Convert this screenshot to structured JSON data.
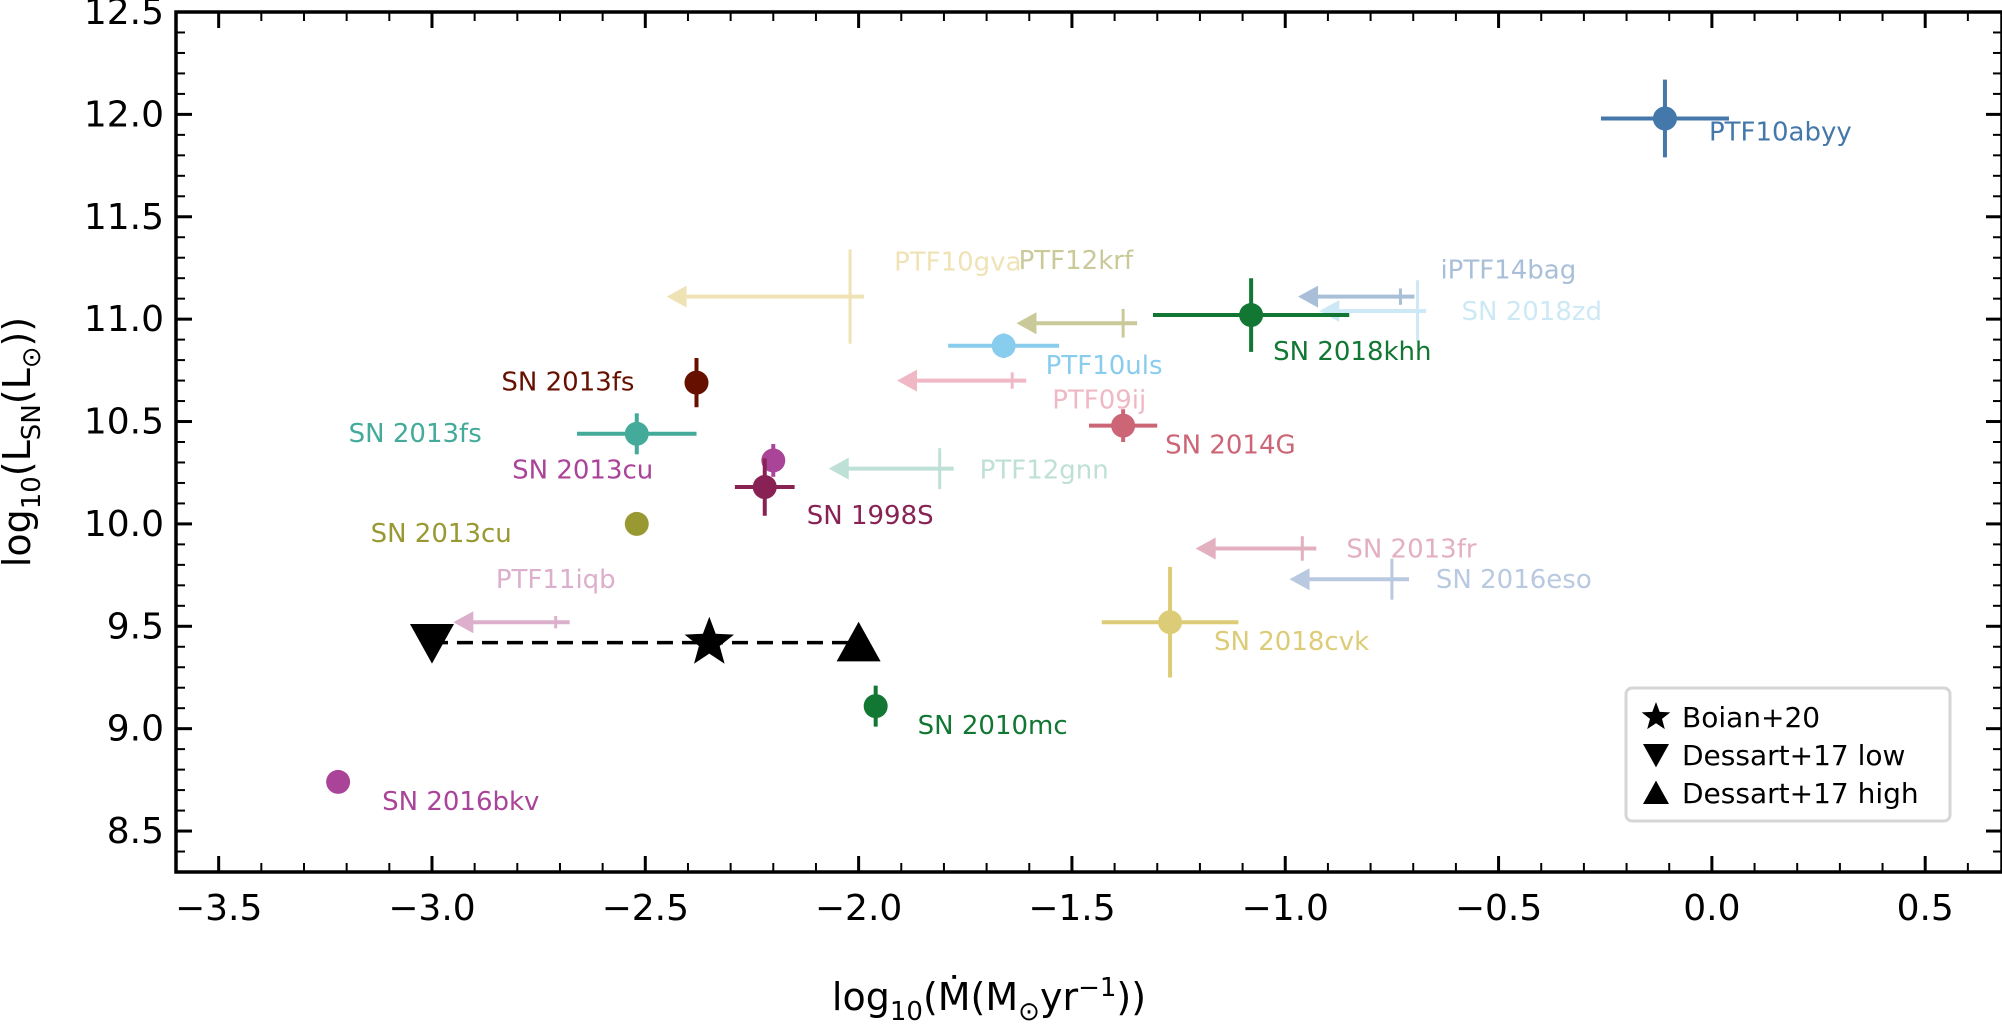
{
  "chart_data": {
    "type": "scatter",
    "title": "",
    "xlabel_parts": {
      "prefix": "log",
      "sub": "10",
      "body": "(Ṁ(M",
      "sun": "⊙",
      "mid": "yr",
      "sup": "−1",
      "end": "))"
    },
    "ylabel_parts": {
      "prefix": "log",
      "sub": "10",
      "body": "(L",
      "sub2": "SN",
      "mid": "(L",
      "sun": "⊙",
      "end": "))"
    },
    "xlim": [
      -3.6,
      0.68
    ],
    "ylim": [
      8.3,
      12.5
    ],
    "xticks": [
      -3.5,
      -3.0,
      -2.5,
      -2.0,
      -1.5,
      -1.0,
      -0.5,
      0.0,
      0.5
    ],
    "xtick_labels": [
      "−3.5",
      "−3.0",
      "−2.5",
      "−2.0",
      "−1.5",
      "−1.0",
      "−0.5",
      "0.0",
      "0.5"
    ],
    "yticks": [
      8.5,
      9.0,
      9.5,
      10.0,
      10.5,
      11.0,
      11.5,
      12.0,
      12.5
    ],
    "ytick_labels": [
      "8.5",
      "9.0",
      "9.5",
      "10.0",
      "10.5",
      "11.0",
      "11.5",
      "12.0",
      "12.5"
    ],
    "detections": [
      {
        "name": "PTF10abyy",
        "x": -0.11,
        "y": 11.98,
        "xerr": 0.15,
        "yerr": 0.19,
        "color": "#4477aa"
      },
      {
        "name": "SN 2018khh",
        "x": -1.08,
        "y": 11.02,
        "xerr": 0.23,
        "yerr": 0.18,
        "color": "#117733"
      },
      {
        "name": "PTF10uls",
        "x": -1.66,
        "y": 10.87,
        "xerr": 0.13,
        "yerr": 0.06,
        "color": "#88ccee"
      },
      {
        "name": "SN 2013fs",
        "x": -2.38,
        "y": 10.69,
        "xerr": 0.0,
        "yerr": 0.12,
        "color": "#661100"
      },
      {
        "name": "SN 2013fs",
        "x": -2.52,
        "y": 10.44,
        "xerr": 0.14,
        "yerr": 0.1,
        "color": "#44aa99"
      },
      {
        "name": "SN 2014G",
        "x": -1.38,
        "y": 10.48,
        "xerr": 0.08,
        "yerr": 0.08,
        "color": "#cc6677"
      },
      {
        "name": "SN 2013cu",
        "x": -2.2,
        "y": 10.31,
        "xerr": 0.0,
        "yerr": 0.08,
        "color": "#aa4499"
      },
      {
        "name": "SN 1998S",
        "x": -2.22,
        "y": 10.18,
        "xerr": 0.07,
        "yerr": 0.14,
        "color": "#882255"
      },
      {
        "name": "SN 2013cu",
        "x": -2.52,
        "y": 10.0,
        "xerr": 0.0,
        "yerr": 0.0,
        "color": "#999933"
      },
      {
        "name": "SN 2018cvk",
        "x": -1.27,
        "y": 9.52,
        "xerr": 0.16,
        "yerr": 0.27,
        "color": "#ddcc77"
      },
      {
        "name": "SN 2010mc",
        "x": -1.96,
        "y": 9.11,
        "xerr": 0.0,
        "yerr": 0.1,
        "color": "#117733"
      },
      {
        "name": "SN 2016bkv",
        "x": -3.22,
        "y": 8.74,
        "xerr": 0.0,
        "yerr": 0.0,
        "color": "#aa4499"
      }
    ],
    "upper_limits": [
      {
        "name": "PTF12krf",
        "x": -1.38,
        "y": 10.98,
        "xerr": 0.0,
        "yerr": 0.07,
        "arrow_to": -1.63,
        "color": "#c9c99a"
      },
      {
        "name": "PTF10gva",
        "x": -2.02,
        "y": 11.11,
        "xerr": 0.0,
        "yerr": 0.23,
        "arrow_to": -2.45,
        "color": "#efe3b6"
      },
      {
        "name": "iPTF14bag",
        "x": -0.73,
        "y": 11.11,
        "xerr": 0.0,
        "yerr": 0.04,
        "arrow_to": -0.97,
        "color": "#a9bfd8"
      },
      {
        "name": "SN 2018zd",
        "x": -0.69,
        "y": 11.04,
        "xerr": 0.02,
        "yerr": 0.15,
        "arrow_to": -0.92,
        "color": "#cde9f5"
      },
      {
        "name": "PTF09ij",
        "x": -1.64,
        "y": 10.7,
        "xerr": 0.0,
        "yerr": 0.04,
        "arrow_to": -1.91,
        "color": "#f0b8c4"
      },
      {
        "name": "PTF12gnn",
        "x": -1.81,
        "y": 10.27,
        "xerr": 0.0,
        "yerr": 0.1,
        "arrow_to": -2.07,
        "color": "#bfe0d7"
      },
      {
        "name": "SN 2013fr",
        "x": -0.96,
        "y": 9.88,
        "xerr": 0.0,
        "yerr": 0.06,
        "arrow_to": -1.21,
        "color": "#e3b0c0"
      },
      {
        "name": "SN 2016eso",
        "x": -0.75,
        "y": 9.73,
        "xerr": 0.04,
        "yerr": 0.1,
        "arrow_to": -0.99,
        "color": "#b8c9e0"
      },
      {
        "name": "PTF11iqb",
        "x": -2.71,
        "y": 9.52,
        "xerr": 0.0,
        "yerr": 0.03,
        "arrow_to": -2.95,
        "color": "#dcb0cc"
      }
    ],
    "models": [
      {
        "name": "Boian+20",
        "marker": "star",
        "x": -2.35,
        "y": 9.42
      },
      {
        "name": "Dessart+17 low",
        "marker": "triangle-down",
        "x": -3.0,
        "y": 9.42
      },
      {
        "name": "Dessart+17 high",
        "marker": "triangle-up",
        "x": -2.0,
        "y": 9.42
      }
    ],
    "model_line": {
      "x": [
        -3.0,
        -2.0
      ],
      "y": [
        9.42,
        9.42
      ],
      "style": "dashed",
      "color": "#000000"
    },
    "legend": {
      "placement": "lower-right",
      "entries": [
        {
          "marker": "star",
          "label": "Boian+20"
        },
        {
          "marker": "triangle-down",
          "label": "Dessart+17 low"
        },
        {
          "marker": "triangle-up",
          "label": "Dessart+17 high"
        }
      ]
    }
  }
}
